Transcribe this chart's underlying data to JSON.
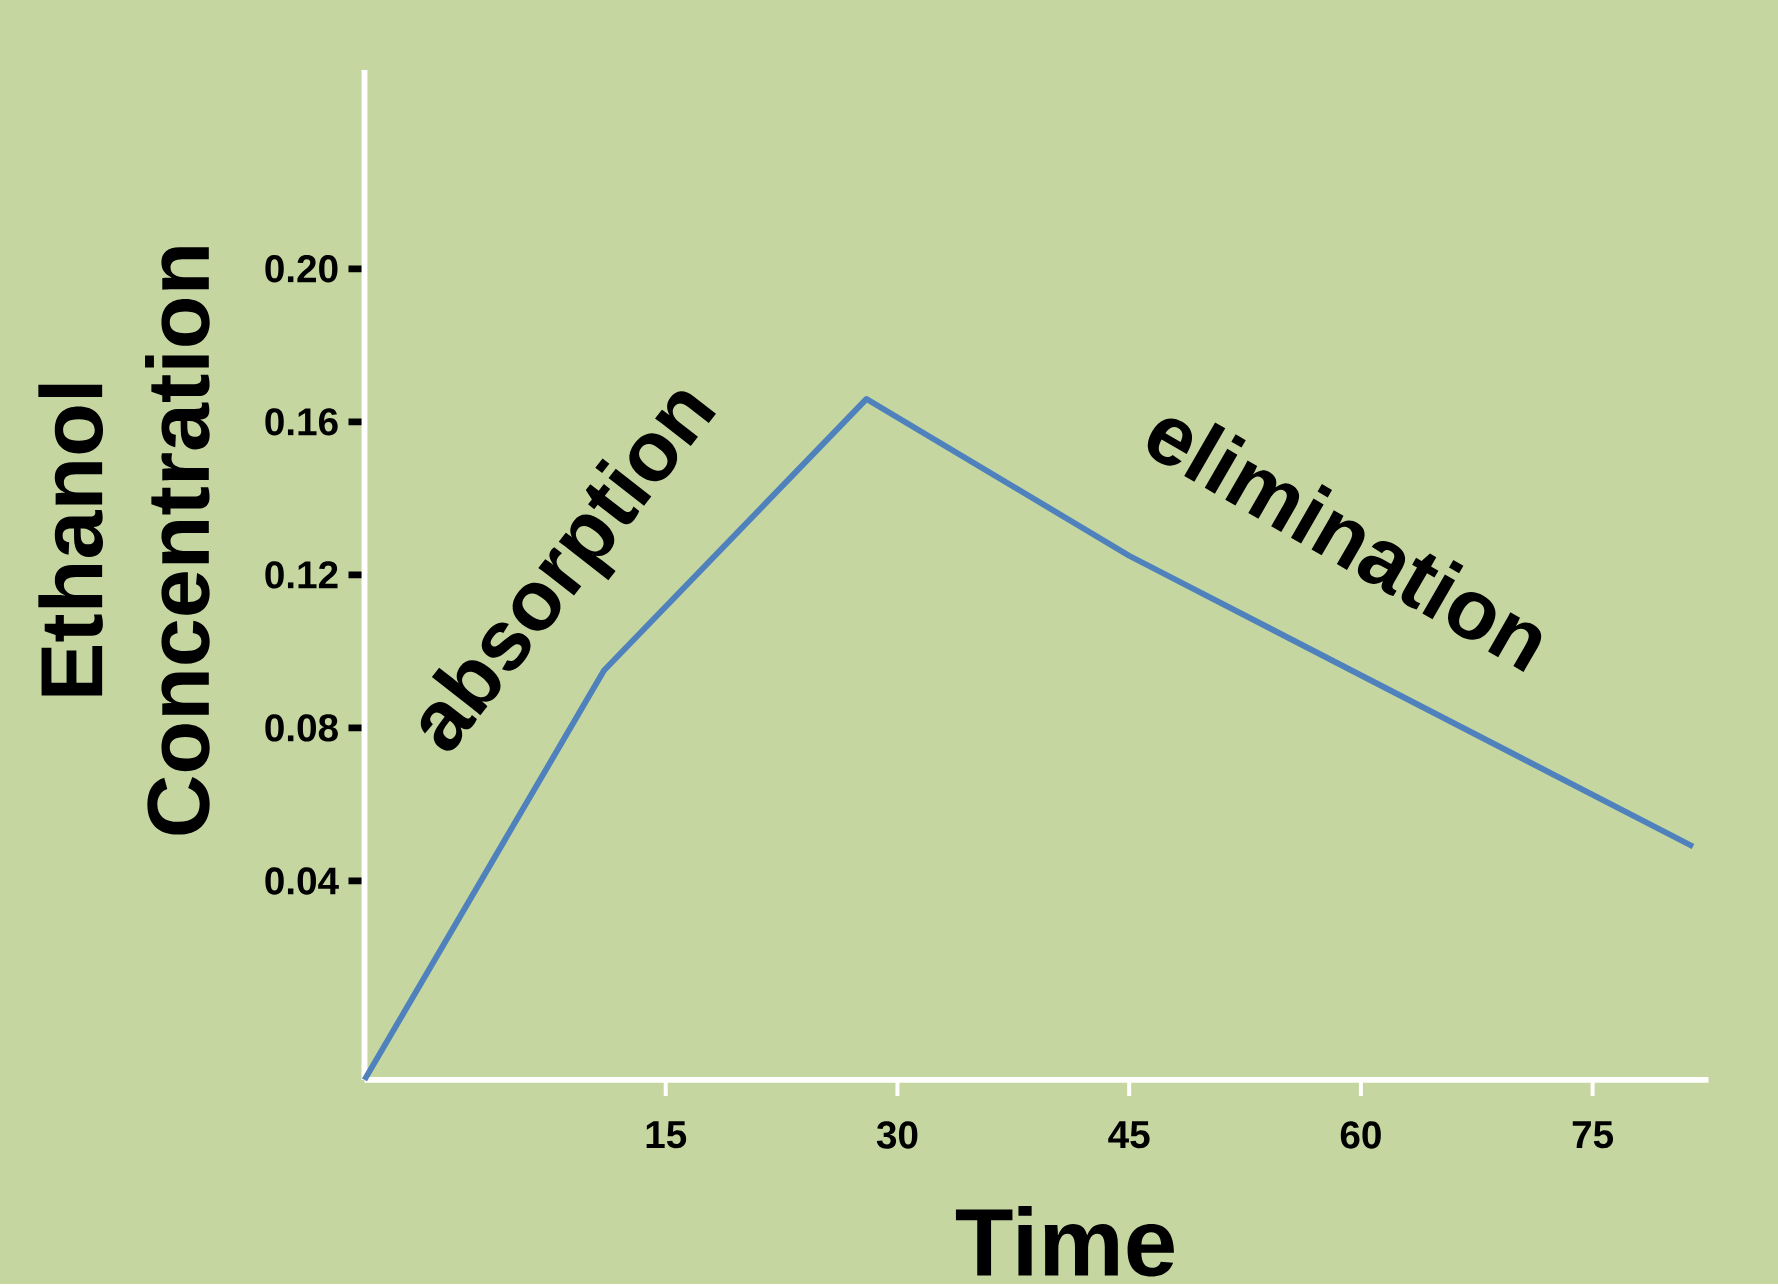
{
  "chart_data": {
    "type": "line",
    "xlabel": "Time",
    "ylabel": "Ethanol\nConcentration",
    "annotations": [
      "absorption",
      "elimination"
    ],
    "x": [
      -4.5,
      11,
      28,
      45,
      81.5
    ],
    "series": [
      {
        "color": "#4f81bd",
        "values": [
          -0.012,
          0.095,
          0.166,
          0.125,
          0.049
        ]
      }
    ],
    "xlim": [
      -4.5,
      82.5
    ],
    "ylim": [
      -0.012,
      0.252
    ],
    "xticks": [
      15,
      30,
      45,
      60,
      75
    ],
    "yticks": [
      {
        "value": 0.04,
        "label": "0.04"
      },
      {
        "value": 0.08,
        "label": "0.08"
      },
      {
        "value": 0.12,
        "label": "0.12"
      },
      {
        "value": 0.16,
        "label": "0.16"
      },
      {
        "value": 0.2,
        "label": "0.20"
      }
    ],
    "grid": false,
    "marker": "none",
    "line_style": "solid"
  }
}
